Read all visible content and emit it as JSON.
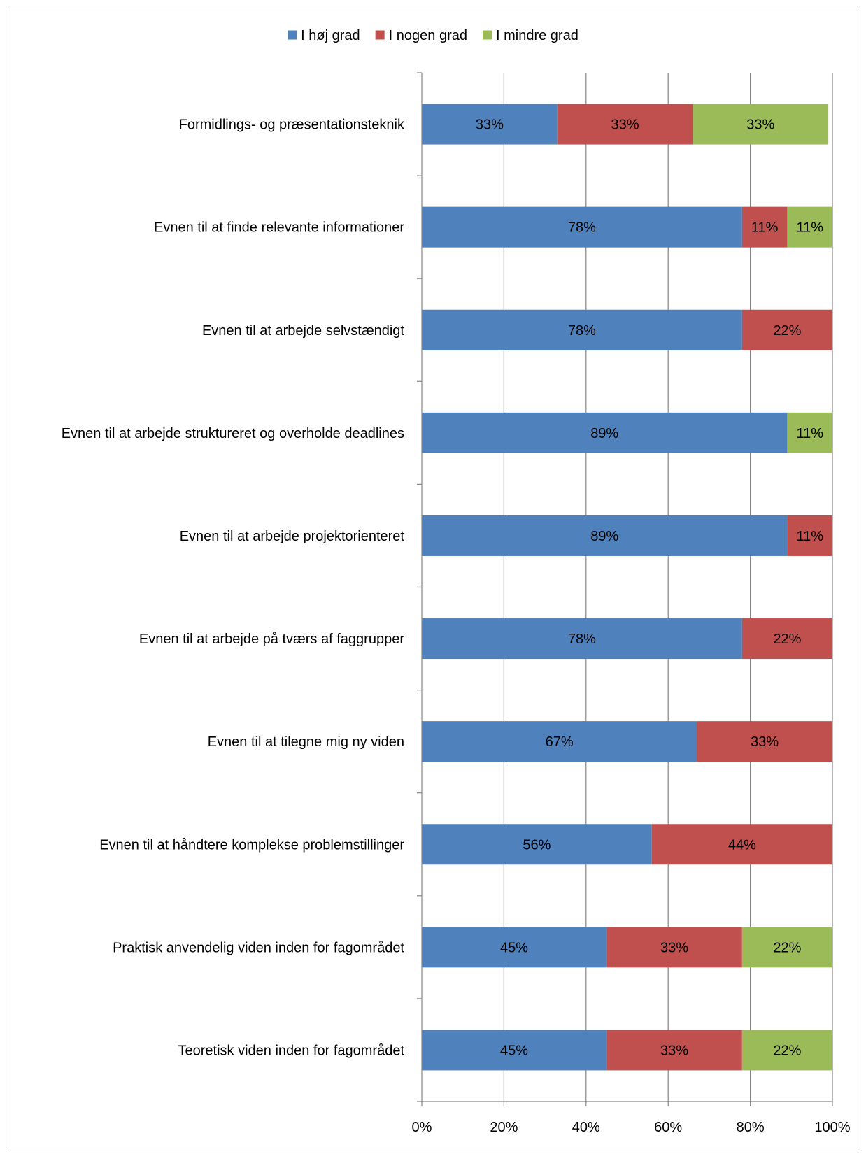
{
  "chart_data": {
    "type": "bar",
    "orientation": "horizontal",
    "stacked": "percent",
    "title": "",
    "xlabel": "",
    "ylabel": "",
    "xlim": [
      0,
      100
    ],
    "x_ticks": [
      "0%",
      "20%",
      "40%",
      "60%",
      "80%",
      "100%"
    ],
    "grid": true,
    "legend_position": "top",
    "categories": [
      "Formidlings- og præsentationsteknik",
      "Evnen til at finde relevante informationer",
      "Evnen til at arbejde selvstændigt",
      "Evnen til at arbejde struktureret og overholde deadlines",
      "Evnen til at arbejde projektorienteret",
      "Evnen til at arbejde på tværs af faggrupper",
      "Evnen til at tilegne mig ny viden",
      "Evnen til at håndtere komplekse problemstillinger",
      "Praktisk anvendelig viden inden for fagområdet",
      "Teoretisk viden inden for fagområdet"
    ],
    "series": [
      {
        "name": "I høj grad",
        "color": "#4f81bd",
        "values": [
          33,
          78,
          78,
          89,
          89,
          78,
          67,
          56,
          45,
          45
        ],
        "labels": [
          "33%",
          "78%",
          "78%",
          "89%",
          "89%",
          "78%",
          "67%",
          "56%",
          "45%",
          "45%"
        ]
      },
      {
        "name": "I nogen grad",
        "color": "#c0504d",
        "values": [
          33,
          11,
          22,
          0,
          11,
          22,
          33,
          44,
          33,
          33
        ],
        "labels": [
          "33%",
          "11%",
          "22%",
          "",
          "11%",
          "22%",
          "33%",
          "44%",
          "33%",
          "33%"
        ]
      },
      {
        "name": "I mindre grad",
        "color": "#9bbb59",
        "values": [
          33,
          11,
          0,
          11,
          0,
          0,
          0,
          0,
          22,
          22
        ],
        "labels": [
          "33%",
          "11%",
          "",
          "11%",
          "",
          "",
          "",
          "",
          "22%",
          "22%"
        ]
      }
    ]
  },
  "colors": {
    "axis": "#868686",
    "gridline": "#868686",
    "frame": "#8c8c8c"
  }
}
